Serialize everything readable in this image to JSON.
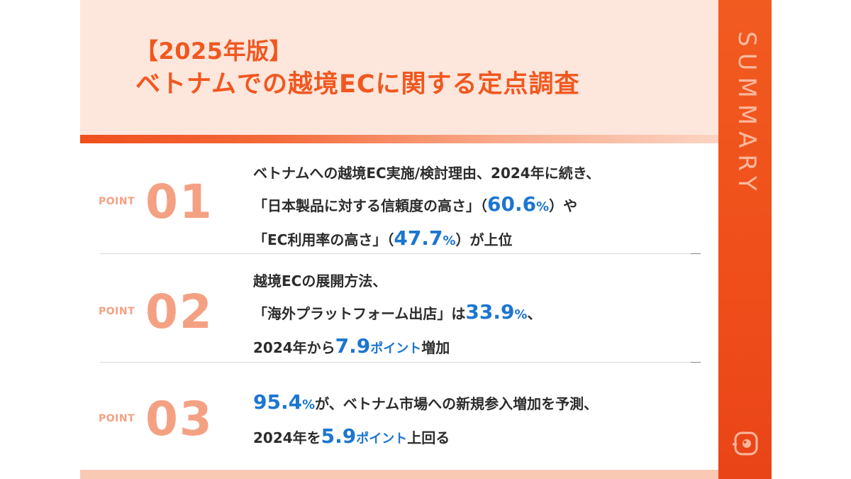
{
  "title": {
    "line1": "【2025年版】",
    "line2": "ベトナムでの越境ECに関する定点調査"
  },
  "sidebar": {
    "label": "SUMMARY",
    "icon": "magnifier-icon"
  },
  "points": [
    {
      "label": "POINT",
      "number": "01",
      "line1": "ベトナムへの越境EC実施/検討理由、2024年に続き、",
      "line2_a": "「日本製品に対する信頼度の高さ」（",
      "line2_val": "60.6",
      "line2_unit": "%",
      "line2_b": "）や",
      "line3_a": "「EC利用率の高さ」（",
      "line3_val": "47.7",
      "line3_unit": "%",
      "line3_b": "）が上位"
    },
    {
      "label": "POINT",
      "number": "02",
      "line1": "越境ECの展開方法、",
      "line2_a": "「海外プラットフォーム出店」は",
      "line2_val": "33.9",
      "line2_unit": "%",
      "line2_b": "、",
      "line3_a": "2024年から",
      "line3_val": "7.9",
      "line3_unit": "ポイント",
      "line3_b": "増加"
    },
    {
      "label": "POINT",
      "number": "03",
      "line1_val": "95.4",
      "line1_unit": "%",
      "line1_b": "が、ベトナム市場への新規参入増加を予測、",
      "line2_a": "2024年を",
      "line2_val": "5.9",
      "line2_unit": "ポイント",
      "line2_b": "上回る"
    }
  ],
  "colors": {
    "accent": "#f0581f",
    "highlight": "#1b76d1",
    "point_number": "#f4a183",
    "card_background": "#fde6dc"
  }
}
